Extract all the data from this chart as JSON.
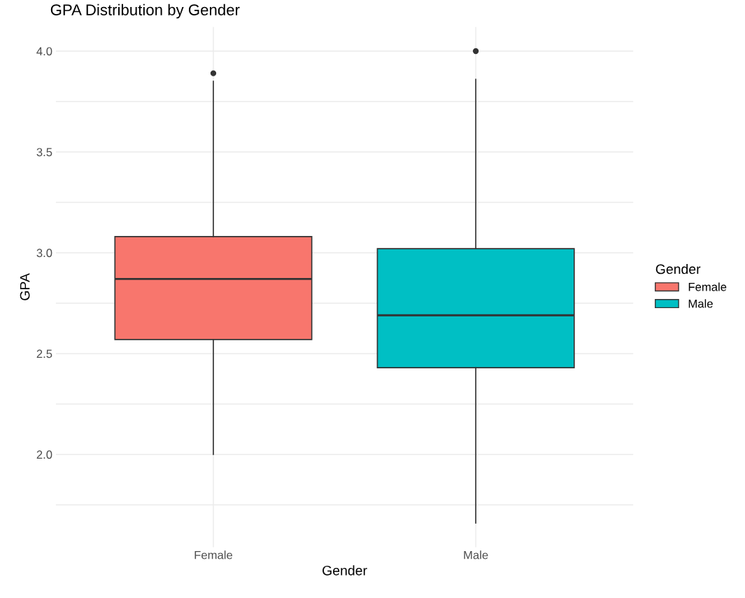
{
  "chart_data": {
    "type": "box",
    "title": "GPA Distribution by Gender",
    "xlabel": "Gender",
    "ylabel": "GPA",
    "legend_title": "Gender",
    "categories": [
      "Female",
      "Male"
    ],
    "series": [
      {
        "name": "Female",
        "color": "#f8766d",
        "boxes": [
          {
            "low": 2.0,
            "q1": 2.57,
            "median": 2.87,
            "q3": 3.08,
            "high": 3.85,
            "outliers": [
              3.89
            ]
          },
          null
        ]
      },
      {
        "name": "Male",
        "color": "#00bfc4",
        "boxes": [
          null,
          {
            "low": 1.66,
            "q1": 2.43,
            "median": 2.69,
            "q3": 3.02,
            "high": 3.86,
            "outliers": [
              4.0
            ]
          }
        ]
      }
    ],
    "ylim": [
      1.54,
      4.12
    ],
    "yticks": [
      {
        "value": 1.75,
        "label": null
      },
      {
        "value": 2,
        "label": "2.0"
      },
      {
        "value": 2.25,
        "label": null
      },
      2.5,
      {
        "value": 2.75,
        "label": null
      },
      {
        "value": 3,
        "label": "3.0"
      },
      {
        "value": 3.25,
        "label": null
      },
      3.5,
      {
        "value": 3.75,
        "label": null
      },
      {
        "value": 4,
        "label": "4.0"
      }
    ],
    "grid": true,
    "legend": "right"
  }
}
